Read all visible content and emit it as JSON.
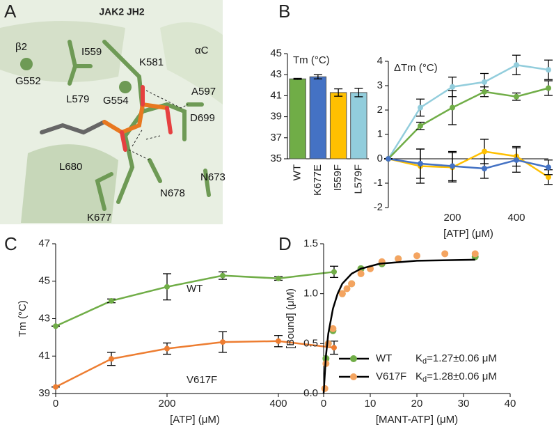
{
  "structure": {
    "panel": "A",
    "title": "JAK2 JH2",
    "labels": [
      "β2",
      "I559",
      "K581",
      "αC",
      "G552",
      "L579",
      "G554",
      "A597",
      "D699",
      "L680",
      "N678",
      "N673",
      "K677"
    ]
  },
  "chart_data": [
    {
      "type": "bar",
      "panel": "B",
      "title": "Tm (°C)",
      "categories": [
        "WT",
        "K677E",
        "I559F",
        "L579F"
      ],
      "values": [
        42.6,
        42.8,
        41.3,
        41.3
      ],
      "errors": [
        0.05,
        0.2,
        0.35,
        0.4
      ],
      "colors": [
        "#70ad47",
        "#4472c4",
        "#ffc000",
        "#92cddc"
      ],
      "ylim": [
        35,
        45
      ],
      "yticks": [
        35,
        37,
        39,
        41,
        43,
        45
      ]
    },
    {
      "type": "line",
      "title": "ΔTm (°C)",
      "x_label": "[ATP] (μM)",
      "x": [
        0,
        100,
        200,
        300,
        400,
        500
      ],
      "series": [
        {
          "color": "#92cddc",
          "values": [
            0,
            2.1,
            2.95,
            3.15,
            3.85,
            3.65
          ],
          "errors": [
            0,
            0.35,
            0.4,
            0.35,
            0.4,
            0.4
          ]
        },
        {
          "color": "#70ad47",
          "values": [
            0,
            1.35,
            2.1,
            2.75,
            2.55,
            2.9
          ],
          "errors": [
            0,
            0.15,
            0.7,
            0.2,
            0.15,
            0.3
          ]
        },
        {
          "color": "#ffc000",
          "values": [
            0,
            -0.3,
            -0.35,
            0.3,
            0.1,
            -0.75
          ],
          "errors": [
            0,
            0.7,
            0.6,
            0.5,
            0.4,
            0.3
          ]
        },
        {
          "color": "#4472c4",
          "values": [
            0,
            -0.2,
            -0.3,
            -0.4,
            -0.05,
            -0.35
          ],
          "errors": [
            0,
            0.6,
            0.6,
            0.4,
            0.5,
            0.3
          ]
        }
      ],
      "xlim": [
        0,
        500
      ],
      "xticks": [
        200,
        400
      ],
      "ylim": [
        -2,
        4
      ],
      "yticks": [
        -2,
        -1,
        0,
        1,
        2,
        3,
        4
      ]
    },
    {
      "type": "line",
      "panel": "C",
      "x_label": "[ATP] (μM)",
      "y_label": "Tm (°C)",
      "x": [
        0,
        100,
        200,
        300,
        400,
        500
      ],
      "series": [
        {
          "name": "WT",
          "color": "#70ad47",
          "values": [
            42.6,
            43.95,
            44.7,
            45.3,
            45.15,
            45.5
          ],
          "errors": [
            0,
            0.1,
            0.7,
            0.2,
            0.1,
            0.3
          ]
        },
        {
          "name": "V617F",
          "color": "#ed7d31",
          "values": [
            39.35,
            40.85,
            41.4,
            41.75,
            41.8,
            41.45
          ],
          "errors": [
            0,
            0.35,
            0.3,
            0.55,
            0.3,
            0.35
          ]
        }
      ],
      "xlim": [
        0,
        500
      ],
      "xticks": [
        0,
        200,
        400
      ],
      "ylim": [
        39,
        47
      ],
      "yticks": [
        39,
        41,
        43,
        45,
        47
      ]
    },
    {
      "type": "scatter",
      "panel": "D",
      "x_label": "[MANT-ATP] (μM)",
      "y_label": "[Bound] (μM)",
      "series": [
        {
          "name": "WT",
          "color": "#70ad47",
          "x": [
            0.5,
            1,
            2,
            4,
            6,
            8,
            12.5,
            16,
            32.5
          ],
          "values": [
            0.35,
            0.5,
            0.63,
            1.0,
            1.1,
            1.25,
            1.3,
            1.35,
            1.37
          ],
          "kd_label": {
            "symbol": "K",
            "subscript": "d",
            "text": "=1.27±0.06 μM"
          }
        },
        {
          "name": "V617F",
          "color": "#f4a460",
          "x": [
            0.25,
            0.5,
            1,
            2,
            4,
            5,
            6,
            8,
            10,
            12.5,
            16,
            20,
            26,
            32.5
          ],
          "values": [
            0.05,
            0.3,
            0.5,
            0.65,
            1.0,
            1.05,
            1.1,
            1.2,
            1.25,
            1.32,
            1.35,
            1.38,
            1.4,
            1.4
          ],
          "kd_label": {
            "symbol": "K",
            "subscript": "d",
            "text": "=1.28±0.06 μM"
          }
        }
      ],
      "fit": {
        "color": "#000000",
        "x": [
          0,
          0.5,
          1,
          2,
          3,
          4,
          6,
          8,
          12,
          20,
          32.5
        ],
        "values": [
          0,
          0.38,
          0.6,
          0.85,
          1.0,
          1.1,
          1.2,
          1.25,
          1.3,
          1.33,
          1.34
        ]
      },
      "xlim": [
        0,
        40
      ],
      "xticks": [
        0,
        10,
        20,
        30,
        40
      ],
      "ylim": [
        0,
        1.5
      ],
      "yticks": [
        {
          "value": 0,
          "label": "0.0"
        },
        0.5,
        {
          "value": 1,
          "label": "1.0"
        },
        1.5
      ]
    }
  ]
}
